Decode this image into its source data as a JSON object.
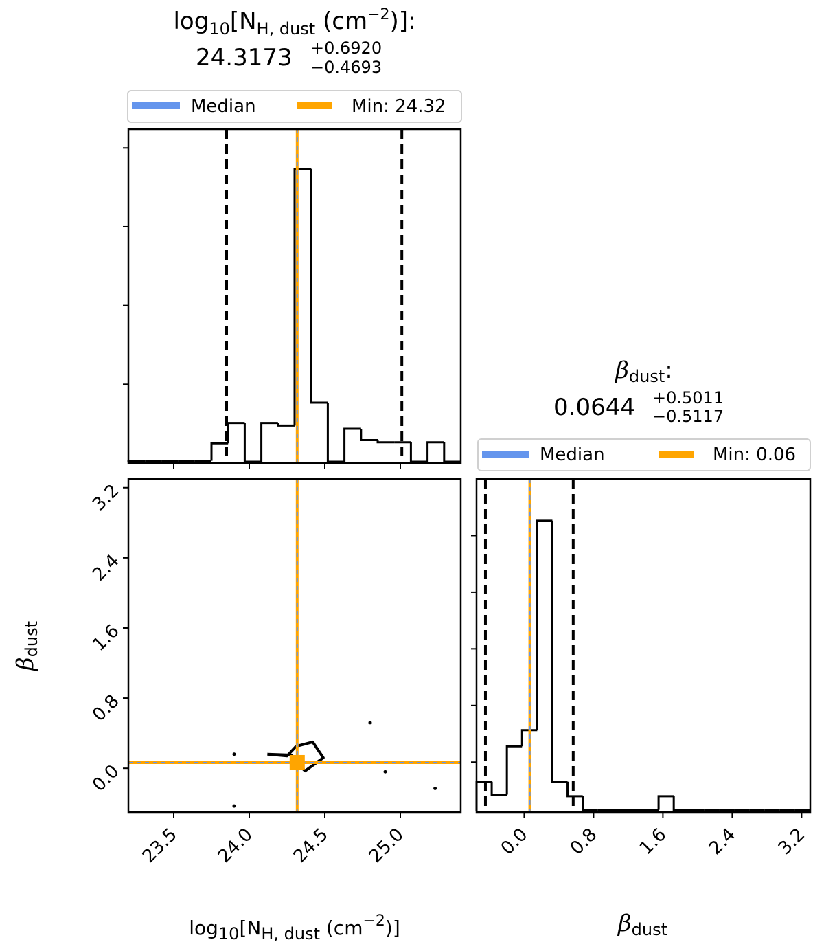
{
  "colors": {
    "median": "#6495ED",
    "min": "#FFA500",
    "hist": "#000000",
    "quantile": "#000000",
    "frame": "#000000"
  },
  "panels": {
    "nh": {
      "title_text": "log",
      "title_sub": "10",
      "title_bracket": "[N",
      "title_sub2": "H, dust",
      "title_unit": " (cm",
      "title_sup": "−2",
      "title_end": ")]:",
      "value": "24.3173",
      "err_plus": "+0.6920",
      "err_minus": "−0.4693",
      "legend_median": "Median",
      "legend_min": "Min: 24.32"
    },
    "beta": {
      "title_symbol": "β",
      "title_sub": "dust",
      "title_end": ":",
      "value": "0.0644",
      "err_plus": "+0.5011",
      "err_minus": "−0.5117",
      "legend_median": "Median",
      "legend_min": "Min: 0.06"
    }
  },
  "axis_labels": {
    "x_left": {
      "pre": "log",
      "sub": "10",
      "mid": "[N",
      "sub2": "H, dust",
      "unit": " (cm",
      "sup": "−2",
      "end": ")]"
    },
    "x_right": {
      "symbol": "β",
      "sub": "dust"
    },
    "y_left": {
      "symbol": "β",
      "sub": "dust"
    }
  },
  "chart_data": [
    {
      "type": "bar",
      "title": "log10[NH, dust (cm−2)]: 24.3173 +0.6920 −0.4693",
      "xlim": [
        23.2,
        25.4
      ],
      "ylim": [
        0,
        1
      ],
      "xticks": [
        "23.5",
        "24.0",
        "24.5",
        "25.0"
      ],
      "bin_edges": [
        23.2,
        23.31,
        23.42,
        23.53,
        23.64,
        23.75,
        23.86,
        23.97,
        24.08,
        24.19,
        24.3,
        24.41,
        24.52,
        24.63,
        24.74,
        24.85,
        24.96,
        25.07,
        25.18,
        25.29,
        25.4
      ],
      "values": [
        0.003,
        0.003,
        0.003,
        0.003,
        0.003,
        0.057,
        0.12,
        0.0,
        0.12,
        0.112,
        0.907,
        0.183,
        0.0,
        0.102,
        0.067,
        0.06,
        0.06,
        0.0,
        0.06,
        0.0
      ],
      "quantile_lines": [
        23.85,
        24.3173,
        25.01
      ],
      "median": 24.3173,
      "min": 24.32,
      "legend": [
        "Median",
        "Min: 24.32"
      ]
    },
    {
      "type": "scatter",
      "title": "",
      "xlabel": "log10[NH, dust (cm−2)]",
      "ylabel": "βdust",
      "xlim": [
        23.2,
        25.4
      ],
      "ylim": [
        -0.5,
        3.3
      ],
      "xticks": [
        "23.5",
        "24.0",
        "24.5",
        "25.0"
      ],
      "yticks": [
        "0.0",
        "0.8",
        "1.6",
        "2.4",
        "3.2"
      ],
      "median": {
        "x": 24.3173,
        "y": 0.0644
      },
      "min": {
        "x": 24.32,
        "y": 0.06
      },
      "contour": [
        [
          24.12,
          0.16
        ],
        [
          24.25,
          0.14
        ],
        [
          24.31,
          0.25
        ],
        [
          24.42,
          0.3
        ],
        [
          24.49,
          0.12
        ],
        [
          24.37,
          -0.03
        ],
        [
          24.3,
          0.08
        ],
        [
          24.28,
          0.15
        ],
        [
          24.12,
          0.16
        ]
      ],
      "points": [
        [
          23.9,
          0.16
        ],
        [
          24.8,
          0.52
        ],
        [
          24.9,
          -0.04
        ],
        [
          25.23,
          -0.23
        ],
        [
          23.9,
          -0.43
        ]
      ]
    },
    {
      "type": "bar",
      "title": "βdust: 0.0644 +0.5011 −0.5117",
      "xlabel": "βdust",
      "xlim": [
        -0.55,
        3.3
      ],
      "ylim": [
        0,
        1
      ],
      "xticks": [
        "0.0",
        "0.8",
        "1.6",
        "2.4",
        "3.2"
      ],
      "bin_edges": [
        -0.55,
        -0.375,
        -0.2,
        -0.025,
        0.15,
        0.325,
        0.5,
        0.675,
        0.85,
        1.025,
        1.2,
        1.375,
        1.55,
        1.725,
        1.9,
        2.075,
        2.25,
        2.425,
        2.6,
        2.775,
        2.95,
        3.125,
        3.3
      ],
      "values": [
        0.09,
        0.05,
        0.2,
        0.25,
        0.9,
        0.09,
        0.045,
        0.003,
        0.003,
        0.003,
        0.003,
        0.003,
        0.045,
        0.003,
        0.003,
        0.003,
        0.003,
        0.003,
        0.003,
        0.003,
        0.003,
        0.003
      ],
      "quantile_lines": [
        -0.4473,
        0.0644,
        0.5655
      ],
      "median": 0.0644,
      "min": 0.06,
      "legend": [
        "Median",
        "Min: 0.06"
      ]
    }
  ]
}
